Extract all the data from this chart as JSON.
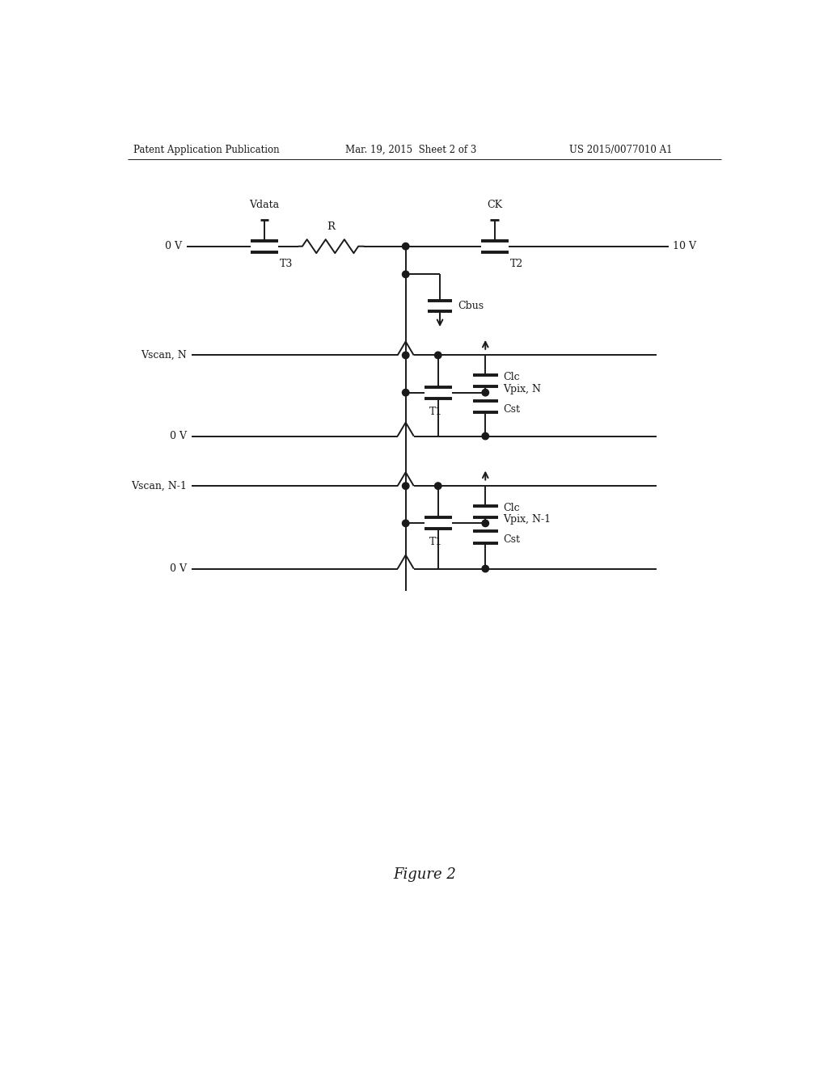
{
  "header_left": "Patent Application Publication",
  "header_mid": "Mar. 19, 2015  Sheet 2 of 3",
  "header_right": "US 2015/0077010 A1",
  "figure_caption": "Figure 2",
  "bg_color": "#ffffff",
  "line_color": "#1a1a1a",
  "text_color": "#1a1a1a"
}
